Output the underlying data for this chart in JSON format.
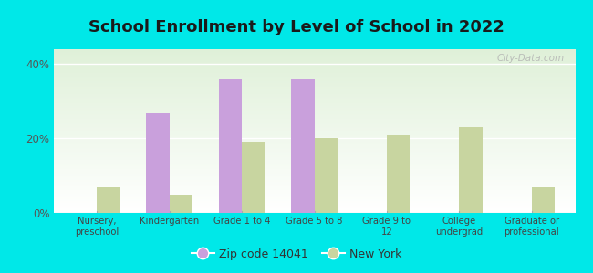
{
  "title": "School Enrollment by Level of School in 2022",
  "categories": [
    "Nursery,\npreschool",
    "Kindergarten",
    "Grade 1 to 4",
    "Grade 5 to 8",
    "Grade 9 to\n12",
    "College\nundergrad",
    "Graduate or\nprofessional"
  ],
  "zip_values": [
    0,
    27,
    36,
    36,
    0,
    0,
    0
  ],
  "ny_values": [
    7,
    5,
    19,
    20,
    21,
    23,
    7
  ],
  "zip_color": "#c9a0dc",
  "ny_color": "#c8d5a0",
  "background_color": "#00e8e8",
  "plot_bg_gradient_top": "#dff0d8",
  "plot_bg_gradient_bottom": "#ffffff",
  "title_fontsize": 13,
  "legend_zip_label": "Zip code 14041",
  "legend_ny_label": "New York",
  "ylim": [
    0,
    44
  ],
  "yticks": [
    0,
    20,
    40
  ],
  "ytick_labels": [
    "0%",
    "20%",
    "40%"
  ],
  "bar_width": 0.32,
  "watermark": "City-Data.com"
}
